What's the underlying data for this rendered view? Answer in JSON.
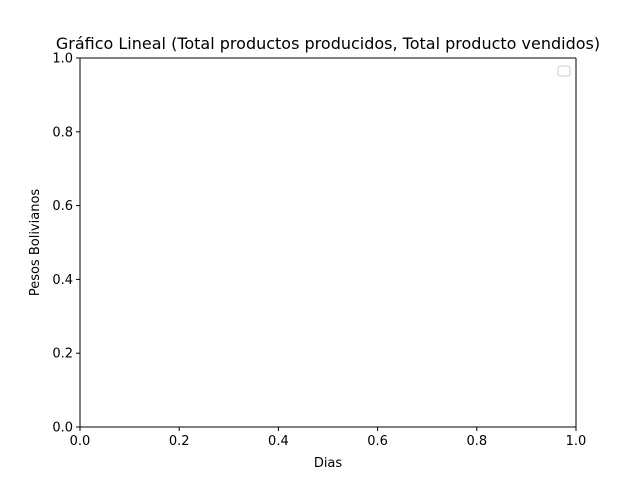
{
  "chart_data": {
    "type": "line",
    "title": "Gráfico Lineal (Total productos producidos, Total producto vendidos)",
    "xlabel": "Dias",
    "ylabel": "Pesos Bolivianos",
    "xlim": [
      0.0,
      1.0
    ],
    "ylim": [
      0.0,
      1.0
    ],
    "xticks": [
      "0.0",
      "0.2",
      "0.4",
      "0.6",
      "0.8",
      "1.0"
    ],
    "yticks": [
      "0.0",
      "0.2",
      "0.4",
      "0.6",
      "0.8",
      "1.0"
    ],
    "series": [],
    "legend": {
      "visible": true,
      "placement": "upper-right",
      "entries": []
    },
    "grid": false
  }
}
